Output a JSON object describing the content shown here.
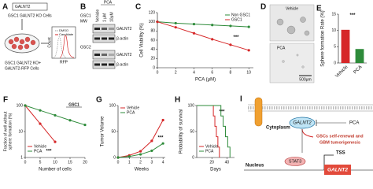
{
  "panel_a": {
    "label": "A",
    "gene": "GALNT2",
    "cells": "GSC1 GALNT2 KO Cells",
    "rescue": [
      "GSC1 GALNT2 KO+",
      "GALNT2-RFP Cells"
    ],
    "y_axis": "Count",
    "x_axis": "RFP",
    "legend": [
      "DMSO",
      "Candidate"
    ]
  },
  "panel_b": {
    "label": "B",
    "cell_lines": [
      "GSC1",
      "GSC2"
    ],
    "mw": "MW",
    "lanes": [
      "Vehicle",
      "1 μM",
      "10μM"
    ],
    "treatment": "PCA",
    "proteins": [
      "GALNT2",
      "β-actin"
    ]
  },
  "panel_d": {
    "label": "D",
    "conditions": [
      "Vehicle",
      "PCA"
    ],
    "scale_bar": "500μm"
  },
  "panel_i": {
    "label": "I",
    "cytoplasm": "Cytoplasm",
    "protein": "GALNT2",
    "drug": "PCA",
    "outcome": [
      "GSCs self-renewal and",
      "GBM tumorigenesis"
    ],
    "nucleus": "Nucleus",
    "factor": "STAT3",
    "tss": "TSS",
    "gene": "GALNT2"
  },
  "chart_data": [
    {
      "panel": "C",
      "type": "line",
      "xlabel": "PCA (μM)",
      "ylabel": "Cell Viability (%)",
      "x": [
        0,
        2,
        4,
        6,
        8,
        10
      ],
      "xlim": [
        0,
        10.5
      ],
      "xticks": [
        0,
        2,
        4,
        6,
        8,
        10
      ],
      "ylim": [
        0,
        120
      ],
      "yticks": [
        0,
        20,
        40,
        60,
        80,
        100,
        120
      ],
      "series": [
        {
          "name": "Non GSC1",
          "color": "#2e8b3a",
          "values": [
            100,
            97,
            95,
            93,
            91,
            89
          ]
        },
        {
          "name": "GSC1",
          "color": "#d62728",
          "values": [
            100,
            88,
            75,
            62,
            50,
            38
          ]
        }
      ],
      "legend": "upper right",
      "annotation": "***"
    },
    {
      "panel": "E",
      "type": "bar",
      "ylabel": "Sphere formation Rate (%)",
      "categories": [
        "Vehicle",
        "PCA"
      ],
      "values": [
        10.2,
        4.3
      ],
      "colors": [
        "#d62728",
        "#2e8b3a"
      ],
      "ylim": [
        0,
        15
      ],
      "yticks": [
        0,
        5,
        10,
        15
      ],
      "annotation": "***"
    },
    {
      "panel": "F",
      "type": "line",
      "title": "GSC1",
      "xlabel": "Number of cells",
      "ylabel": [
        "Fraction of well without",
        "sphere formation (%)"
      ],
      "x": [
        0,
        5,
        10,
        15,
        20
      ],
      "xlim": [
        0,
        20
      ],
      "xticks": [
        0,
        5,
        10,
        15,
        20
      ],
      "ylim": [
        1,
        100
      ],
      "yticks": [
        1,
        10,
        100
      ],
      "log_y": true,
      "series": [
        {
          "name": "Vehicle",
          "color": "#d62728",
          "values": [
            100,
            20,
            4,
            null,
            null
          ]
        },
        {
          "name": "PCA",
          "color": "#2e8b3a",
          "values": [
            100,
            65,
            42,
            27,
            18
          ]
        }
      ],
      "legend": "lower left",
      "annotation": "***"
    },
    {
      "panel": "G",
      "type": "line",
      "xlabel": "Weeks",
      "ylabel": "Tumor Volume",
      "x": [
        0,
        1,
        2,
        3,
        4
      ],
      "xlim": [
        0,
        4.2
      ],
      "xticks": [
        0,
        1,
        2,
        3,
        4
      ],
      "ylim": [
        0,
        100
      ],
      "yticks": [
        0,
        50,
        100
      ],
      "series": [
        {
          "name": "Vehicle",
          "color": "#d62728",
          "values": [
            0,
            4,
            12,
            32,
            72
          ]
        },
        {
          "name": "PCA",
          "color": "#2e8b3a",
          "values": [
            0,
            2,
            6,
            13,
            27
          ]
        }
      ],
      "legend": "upper left",
      "annotation": "***"
    },
    {
      "panel": "H",
      "type": "step",
      "xlabel": "Days",
      "ylabel": "Probability of survival",
      "xlim": [
        0,
        50
      ],
      "xticks": [
        20,
        40
      ],
      "ylim": [
        0,
        100
      ],
      "yticks": [
        0,
        50,
        100
      ],
      "series": [
        {
          "name": "Vehicle",
          "color": "#d62728",
          "x": [
            0,
            22,
            24,
            26,
            28,
            30
          ],
          "values": [
            100,
            80,
            60,
            40,
            20,
            0
          ]
        },
        {
          "name": "PCA",
          "color": "#2e8b3a",
          "x": [
            0,
            32,
            35,
            38,
            41,
            44
          ],
          "values": [
            100,
            80,
            60,
            40,
            20,
            0
          ]
        }
      ],
      "legend": "lower left",
      "annotation": "***"
    }
  ]
}
